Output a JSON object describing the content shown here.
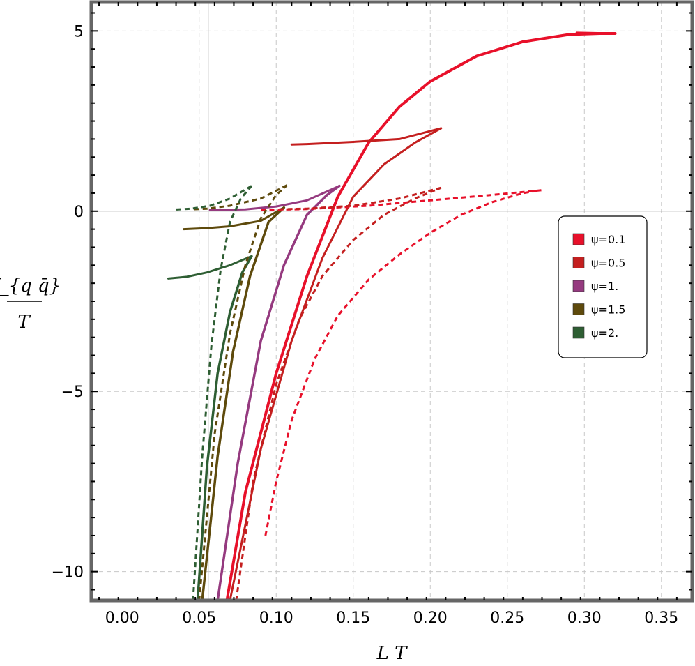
{
  "chart_data": {
    "type": "line",
    "xlabel": "L T",
    "ylabel_top": "V_{q q̄}",
    "ylabel_bottom": "T",
    "xlim": [
      -0.02,
      0.37
    ],
    "ylim": [
      -10.8,
      5.8
    ],
    "x_ticks": [
      0.0,
      0.05,
      0.1,
      0.15,
      0.2,
      0.25,
      0.3,
      0.35
    ],
    "x_tick_labels": [
      "0.00",
      "0.05",
      "0.10",
      "0.15",
      "0.20",
      "0.25",
      "0.30",
      "0.35"
    ],
    "y_ticks": [
      -10,
      -5,
      0,
      5
    ],
    "y_tick_labels": [
      "−10",
      "−5",
      "0",
      "5"
    ],
    "grid": true,
    "legend_position": "right",
    "legend": [
      {
        "label": "ψ=0.1",
        "color": "#e8102a"
      },
      {
        "label": "ψ=0.5",
        "color": "#c41f1f"
      },
      {
        "label": "ψ=1.",
        "color": "#953a7f"
      },
      {
        "label": "ψ=1.5",
        "color": "#5e4a0c"
      },
      {
        "label": "ψ=2.",
        "color": "#2e5e33"
      }
    ],
    "series": [
      {
        "name": "ψ=0.1",
        "color": "#e8102a",
        "style": "solid",
        "width": 4,
        "x": [
          0.068,
          0.08,
          0.1,
          0.12,
          0.14,
          0.16,
          0.18,
          0.2,
          0.23,
          0.26,
          0.29,
          0.31,
          0.32
        ],
        "y": [
          -10.8,
          -7.8,
          -4.5,
          -1.8,
          0.4,
          1.9,
          2.9,
          3.6,
          4.3,
          4.7,
          4.9,
          4.93,
          4.93
        ]
      },
      {
        "name": "ψ=0.1",
        "color": "#e8102a",
        "style": "solid",
        "width": 3,
        "x": [
          0.32,
          0.295
        ],
        "y": [
          4.93,
          4.95
        ]
      },
      {
        "name": "ψ=0.5",
        "color": "#c41f1f",
        "style": "solid",
        "width": 3,
        "x": [
          0.07,
          0.09,
          0.11,
          0.13,
          0.15,
          0.17,
          0.19,
          0.207
        ],
        "y": [
          -10.8,
          -6.6,
          -3.6,
          -1.3,
          0.4,
          1.3,
          1.9,
          2.3
        ]
      },
      {
        "name": "ψ=0.5",
        "color": "#c41f1f",
        "style": "solid",
        "width": 3,
        "x": [
          0.207,
          0.18,
          0.15,
          0.12,
          0.11
        ],
        "y": [
          2.3,
          2.0,
          1.92,
          1.86,
          1.85
        ]
      },
      {
        "name": "ψ=1.",
        "color": "#953a7f",
        "style": "solid",
        "width": 3.5,
        "x": [
          0.062,
          0.075,
          0.09,
          0.105,
          0.12,
          0.133,
          0.141
        ],
        "y": [
          -10.8,
          -7.0,
          -3.6,
          -1.5,
          -0.1,
          0.45,
          0.7
        ]
      },
      {
        "name": "ψ=1.",
        "color": "#953a7f",
        "style": "solid",
        "width": 3,
        "x": [
          0.141,
          0.12,
          0.1,
          0.08,
          0.057
        ],
        "y": [
          0.7,
          0.3,
          0.13,
          0.05,
          0.03
        ]
      },
      {
        "name": "ψ=1.5",
        "color": "#5e4a0c",
        "style": "solid",
        "width": 3.5,
        "x": [
          0.052,
          0.062,
          0.072,
          0.083,
          0.095,
          0.105
        ],
        "y": [
          -10.8,
          -6.8,
          -3.9,
          -1.8,
          -0.3,
          0.1
        ]
      },
      {
        "name": "ψ=1.5",
        "color": "#5e4a0c",
        "style": "solid",
        "width": 3,
        "x": [
          0.105,
          0.09,
          0.07,
          0.055,
          0.04
        ],
        "y": [
          0.1,
          -0.27,
          -0.42,
          -0.47,
          -0.5
        ]
      },
      {
        "name": "ψ=2.",
        "color": "#2e5e33",
        "style": "solid",
        "width": 3.5,
        "x": [
          0.049,
          0.055,
          0.062,
          0.07,
          0.078,
          0.084
        ],
        "y": [
          -10.8,
          -7.1,
          -4.5,
          -2.8,
          -1.7,
          -1.25
        ]
      },
      {
        "name": "ψ=2.",
        "color": "#2e5e33",
        "style": "solid",
        "width": 3,
        "x": [
          0.084,
          0.07,
          0.055,
          0.042,
          0.03
        ],
        "y": [
          -1.25,
          -1.5,
          -1.7,
          -1.82,
          -1.87
        ]
      },
      {
        "name": "ψ=0.1",
        "color": "#e8102a",
        "style": "dashed",
        "width": 3,
        "x": [
          0.093,
          0.1,
          0.11,
          0.125,
          0.14,
          0.16,
          0.18,
          0.2,
          0.22,
          0.24,
          0.26,
          0.272
        ],
        "y": [
          -9.0,
          -7.5,
          -5.8,
          -4.1,
          -2.9,
          -1.9,
          -1.2,
          -0.6,
          -0.1,
          0.25,
          0.5,
          0.58
        ]
      },
      {
        "name": "ψ=0.1",
        "color": "#e8102a",
        "style": "dashed",
        "width": 3,
        "x": [
          0.272,
          0.24,
          0.2,
          0.16,
          0.12,
          0.09
        ],
        "y": [
          0.58,
          0.45,
          0.3,
          0.15,
          0.06,
          0.03
        ]
      },
      {
        "name": "ψ=0.5",
        "color": "#c41f1f",
        "style": "dashed",
        "width": 3,
        "x": [
          0.074,
          0.085,
          0.1,
          0.115,
          0.13,
          0.15,
          0.17,
          0.19,
          0.207
        ],
        "y": [
          -10.8,
          -7.5,
          -4.8,
          -3.0,
          -1.8,
          -0.8,
          -0.1,
          0.35,
          0.65
        ]
      },
      {
        "name": "ψ=0.5",
        "color": "#c41f1f",
        "style": "dashed",
        "width": 3,
        "x": [
          0.207,
          0.18,
          0.15,
          0.12,
          0.1
        ],
        "y": [
          0.65,
          0.35,
          0.15,
          0.07,
          0.05
        ]
      },
      {
        "name": "ψ=1.5",
        "color": "#5e4a0c",
        "style": "dashed",
        "width": 3,
        "x": [
          0.05,
          0.06,
          0.07,
          0.08,
          0.09,
          0.1,
          0.107
        ],
        "y": [
          -10.8,
          -6.2,
          -3.4,
          -1.5,
          -0.2,
          0.45,
          0.72
        ]
      },
      {
        "name": "ψ=1.5",
        "color": "#5e4a0c",
        "style": "dashed",
        "width": 3,
        "x": [
          0.107,
          0.09,
          0.07,
          0.055,
          0.045
        ],
        "y": [
          0.72,
          0.35,
          0.15,
          0.07,
          0.05
        ]
      },
      {
        "name": "ψ=2.",
        "color": "#2e5e33",
        "style": "dashed",
        "width": 3,
        "x": [
          0.046,
          0.052,
          0.058,
          0.064,
          0.07,
          0.077,
          0.084
        ],
        "y": [
          -10.8,
          -6.8,
          -3.7,
          -1.6,
          -0.3,
          0.35,
          0.7
        ]
      },
      {
        "name": "ψ=2.",
        "color": "#2e5e33",
        "style": "dashed",
        "width": 3,
        "x": [
          0.084,
          0.07,
          0.057,
          0.045,
          0.033
        ],
        "y": [
          0.7,
          0.35,
          0.15,
          0.07,
          0.04
        ]
      }
    ]
  }
}
